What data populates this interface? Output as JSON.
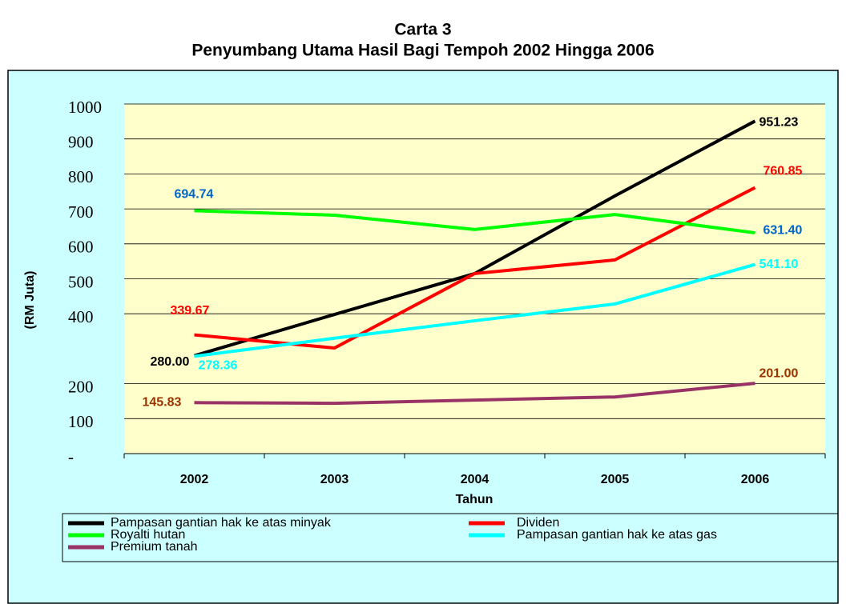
{
  "chart_data": {
    "type": "line",
    "title": "Carta 3",
    "subtitle": "Penyumbang Utama Hasil Bagi Tempoh 2002 Hingga 2006",
    "x_label": "Tahun",
    "y_label": "(RM Juta)",
    "categories": [
      "2002",
      "2003",
      "2004",
      "2005",
      "2006"
    ],
    "ylim": [
      0,
      1000
    ],
    "yticks": [
      {
        "value": 0,
        "label": "-"
      },
      100,
      200,
      400,
      500,
      600,
      700,
      800,
      900,
      1000
    ],
    "grid": true,
    "series": [
      {
        "name": "Pampasan gantian hak ke atas minyak",
        "color": "#000000",
        "label_color": "#000000",
        "values": [
          280.0,
          398,
          515,
          737,
          951.23
        ],
        "value_labels": [
          "280.00",
          null,
          null,
          null,
          "951.23"
        ]
      },
      {
        "name": "Dividen",
        "color": "#ff0000",
        "label_color": "#ff0000",
        "values": [
          339.67,
          302,
          515,
          554,
          760.85
        ],
        "value_labels": [
          "339.67",
          null,
          null,
          null,
          "760.85"
        ]
      },
      {
        "name": "Royalti hutan",
        "color": "#00ff00",
        "label_color": "#0066cc",
        "values": [
          694.74,
          682,
          641,
          684,
          631.4
        ],
        "value_labels": [
          "694.74",
          null,
          null,
          null,
          "631.40"
        ]
      },
      {
        "name": "Pampasan gantian hak ke atas gas",
        "color": "#00ffff",
        "label_color": "#00ffff",
        "values": [
          278.36,
          330,
          380,
          428,
          541.1
        ],
        "value_labels": [
          "278.36",
          null,
          null,
          null,
          "541.10"
        ]
      },
      {
        "name": "Premium tanah",
        "color": "#993366",
        "label_color": "#993300",
        "values": [
          145.83,
          144,
          153,
          162,
          201.0
        ],
        "value_labels": [
          "145.83",
          null,
          null,
          null,
          "201.00"
        ]
      }
    ]
  }
}
